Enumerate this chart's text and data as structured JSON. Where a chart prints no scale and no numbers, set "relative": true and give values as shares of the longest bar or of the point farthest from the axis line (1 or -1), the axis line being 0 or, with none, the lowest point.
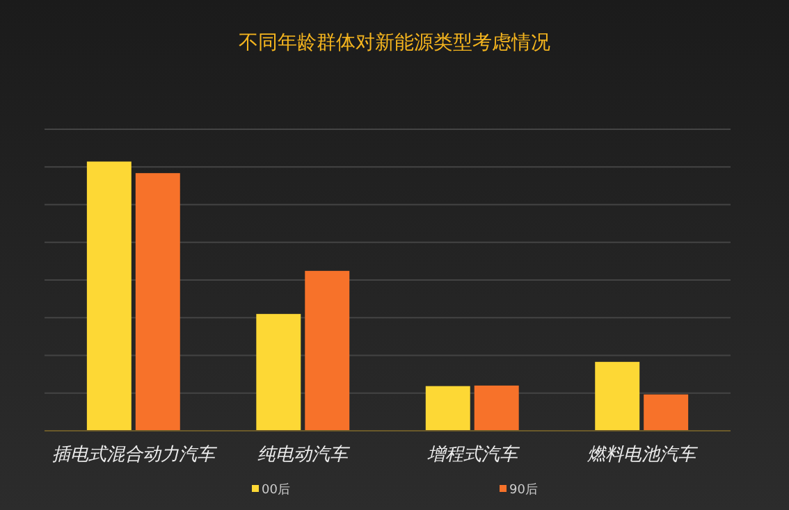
{
  "chart_data": {
    "type": "bar",
    "title": "不同年龄群体对新能源类型考虑情况",
    "relative": true,
    "grid": "y",
    "legend": "bottom",
    "categories": [
      "插电式混合动力汽车",
      "纯电动汽车",
      "增程式汽车",
      "燃料电池汽车"
    ],
    "series": [
      {
        "name": "00后",
        "color": "#fdd835",
        "values": [
          1,
          0.434,
          0.166,
          0.256
        ]
      },
      {
        "name": "90后",
        "color": "#f7722a",
        "values": [
          0.957,
          0.594,
          0.168,
          0.135
        ]
      }
    ]
  }
}
